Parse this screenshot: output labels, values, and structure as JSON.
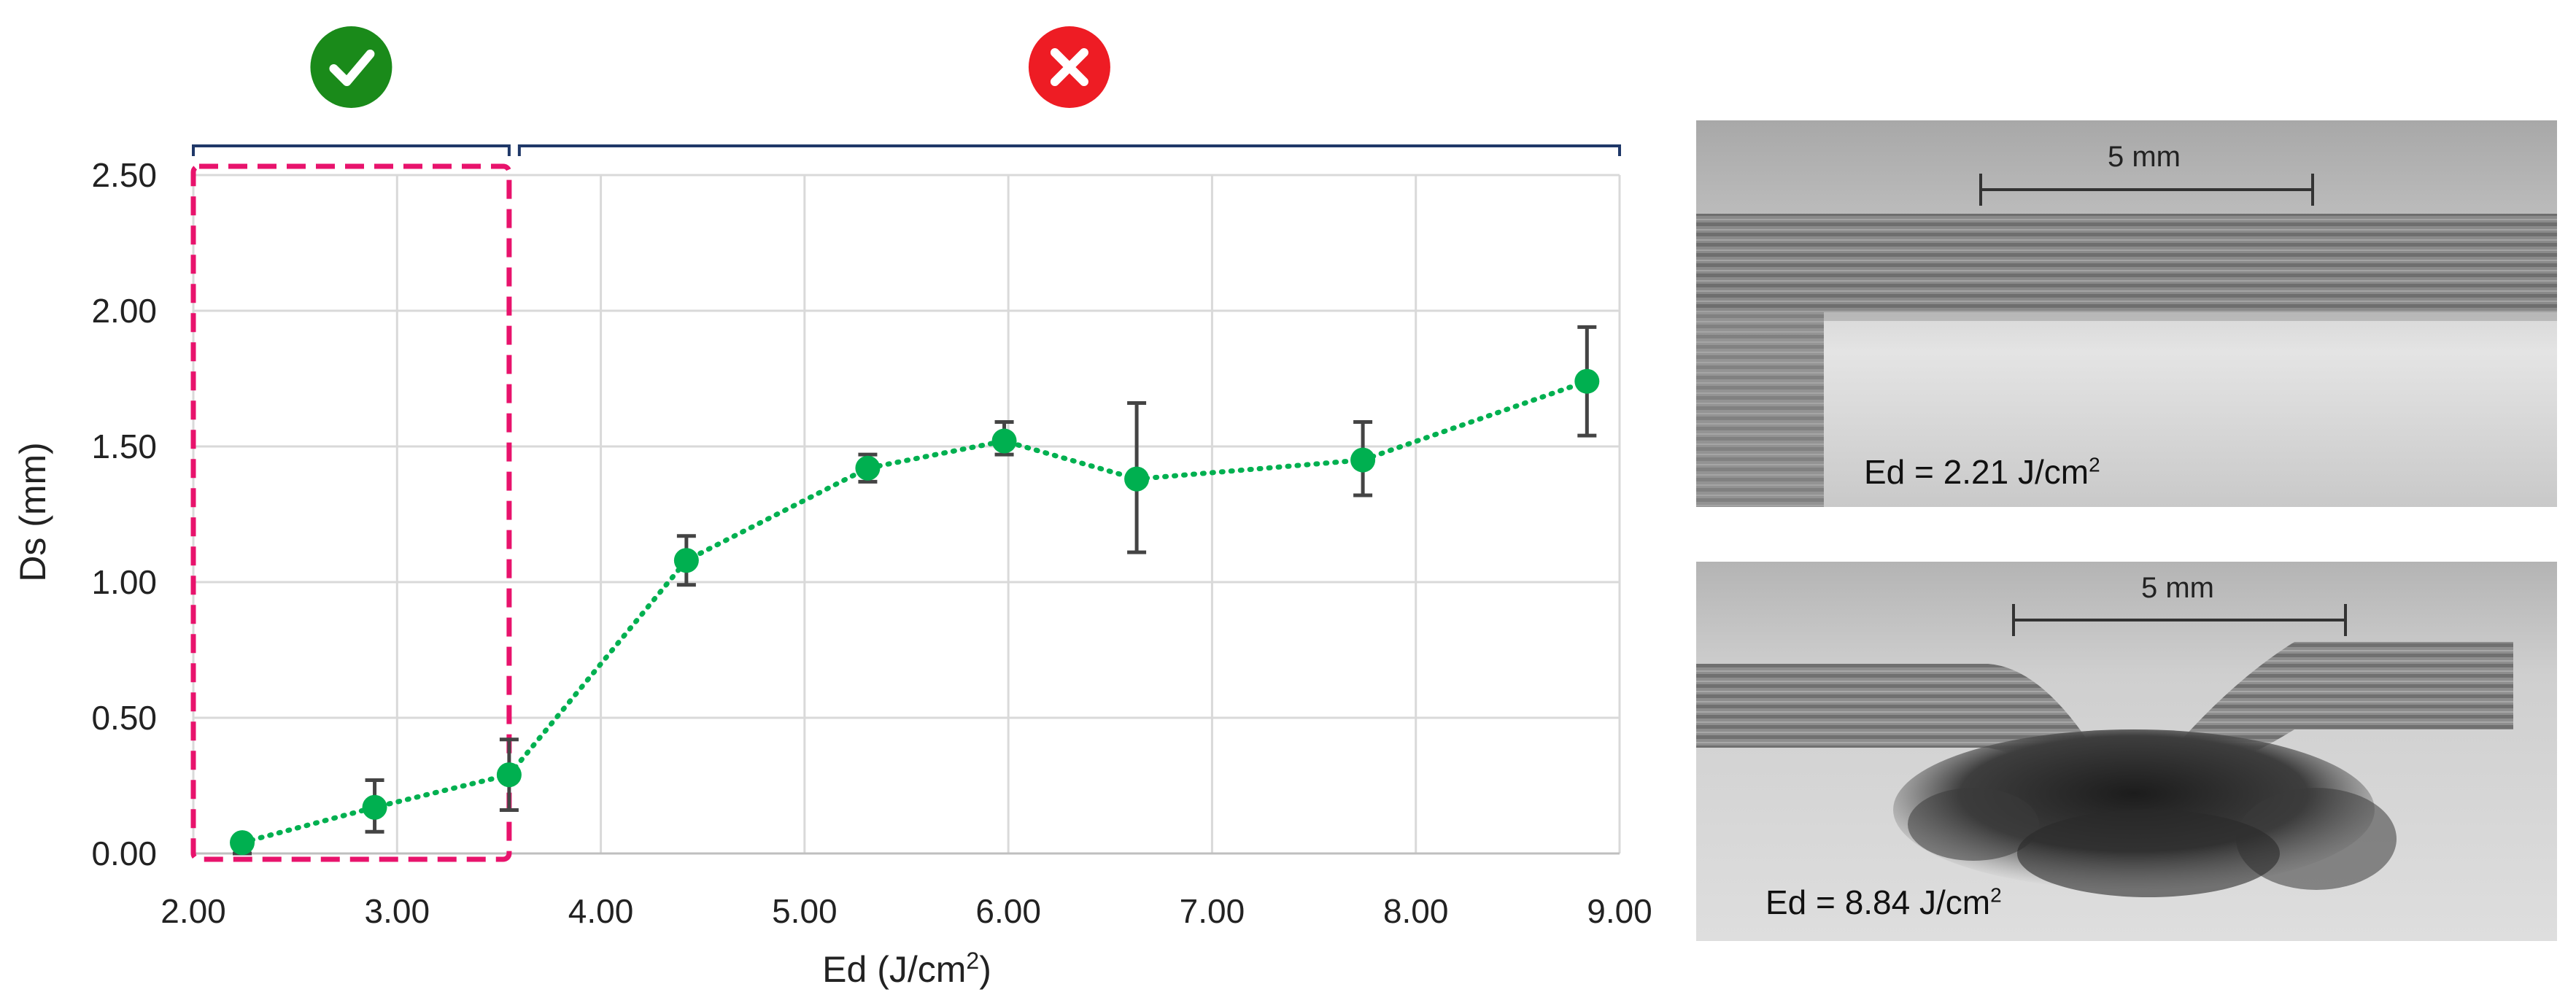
{
  "chart_data": {
    "type": "scatter",
    "xlabel": "Ed (J/cm",
    "xlabel_sup": "2",
    "xlabel_tail": ")",
    "ylabel": "Ds (mm)",
    "xlim": [
      2.0,
      9.0
    ],
    "ylim": [
      0.0,
      2.5
    ],
    "x_ticks": [
      "2.00",
      "3.00",
      "4.00",
      "5.00",
      "6.00",
      "7.00",
      "8.00",
      "9.00"
    ],
    "y_ticks": [
      "0.00",
      "0.50",
      "1.00",
      "1.50",
      "2.00",
      "2.50"
    ],
    "grid": true,
    "series": [
      {
        "color": "#00b050",
        "line_style": "dotted",
        "x": [
          2.24,
          2.89,
          3.55,
          4.42,
          5.31,
          5.98,
          6.63,
          7.74,
          8.84
        ],
        "y": [
          0.04,
          0.17,
          0.29,
          1.08,
          1.42,
          1.52,
          1.38,
          1.45,
          1.74
        ],
        "err_low": [
          0.04,
          0.09,
          0.13,
          0.09,
          0.05,
          0.05,
          0.27,
          0.13,
          0.2
        ],
        "err_high": [
          0.0,
          0.1,
          0.13,
          0.09,
          0.05,
          0.07,
          0.28,
          0.14,
          0.2
        ]
      }
    ],
    "highlight_box": {
      "x_range": [
        2.0,
        3.55
      ],
      "color": "#e8136c",
      "style": "dashed"
    },
    "brackets": [
      {
        "x_range": [
          2.0,
          3.55
        ],
        "status": "ok",
        "icon": "check-icon",
        "color": "#1a8a1a"
      },
      {
        "x_range": [
          3.6,
          9.0
        ],
        "status": "fail",
        "icon": "cross-icon",
        "color": "#ee1c24"
      }
    ]
  },
  "photos": [
    {
      "scale_label": "5 mm",
      "caption": "Ed = 2.21 J/cm",
      "caption_sup": "2"
    },
    {
      "scale_label": "5 mm",
      "caption": "Ed = 8.84 J/cm",
      "caption_sup": "2"
    }
  ]
}
